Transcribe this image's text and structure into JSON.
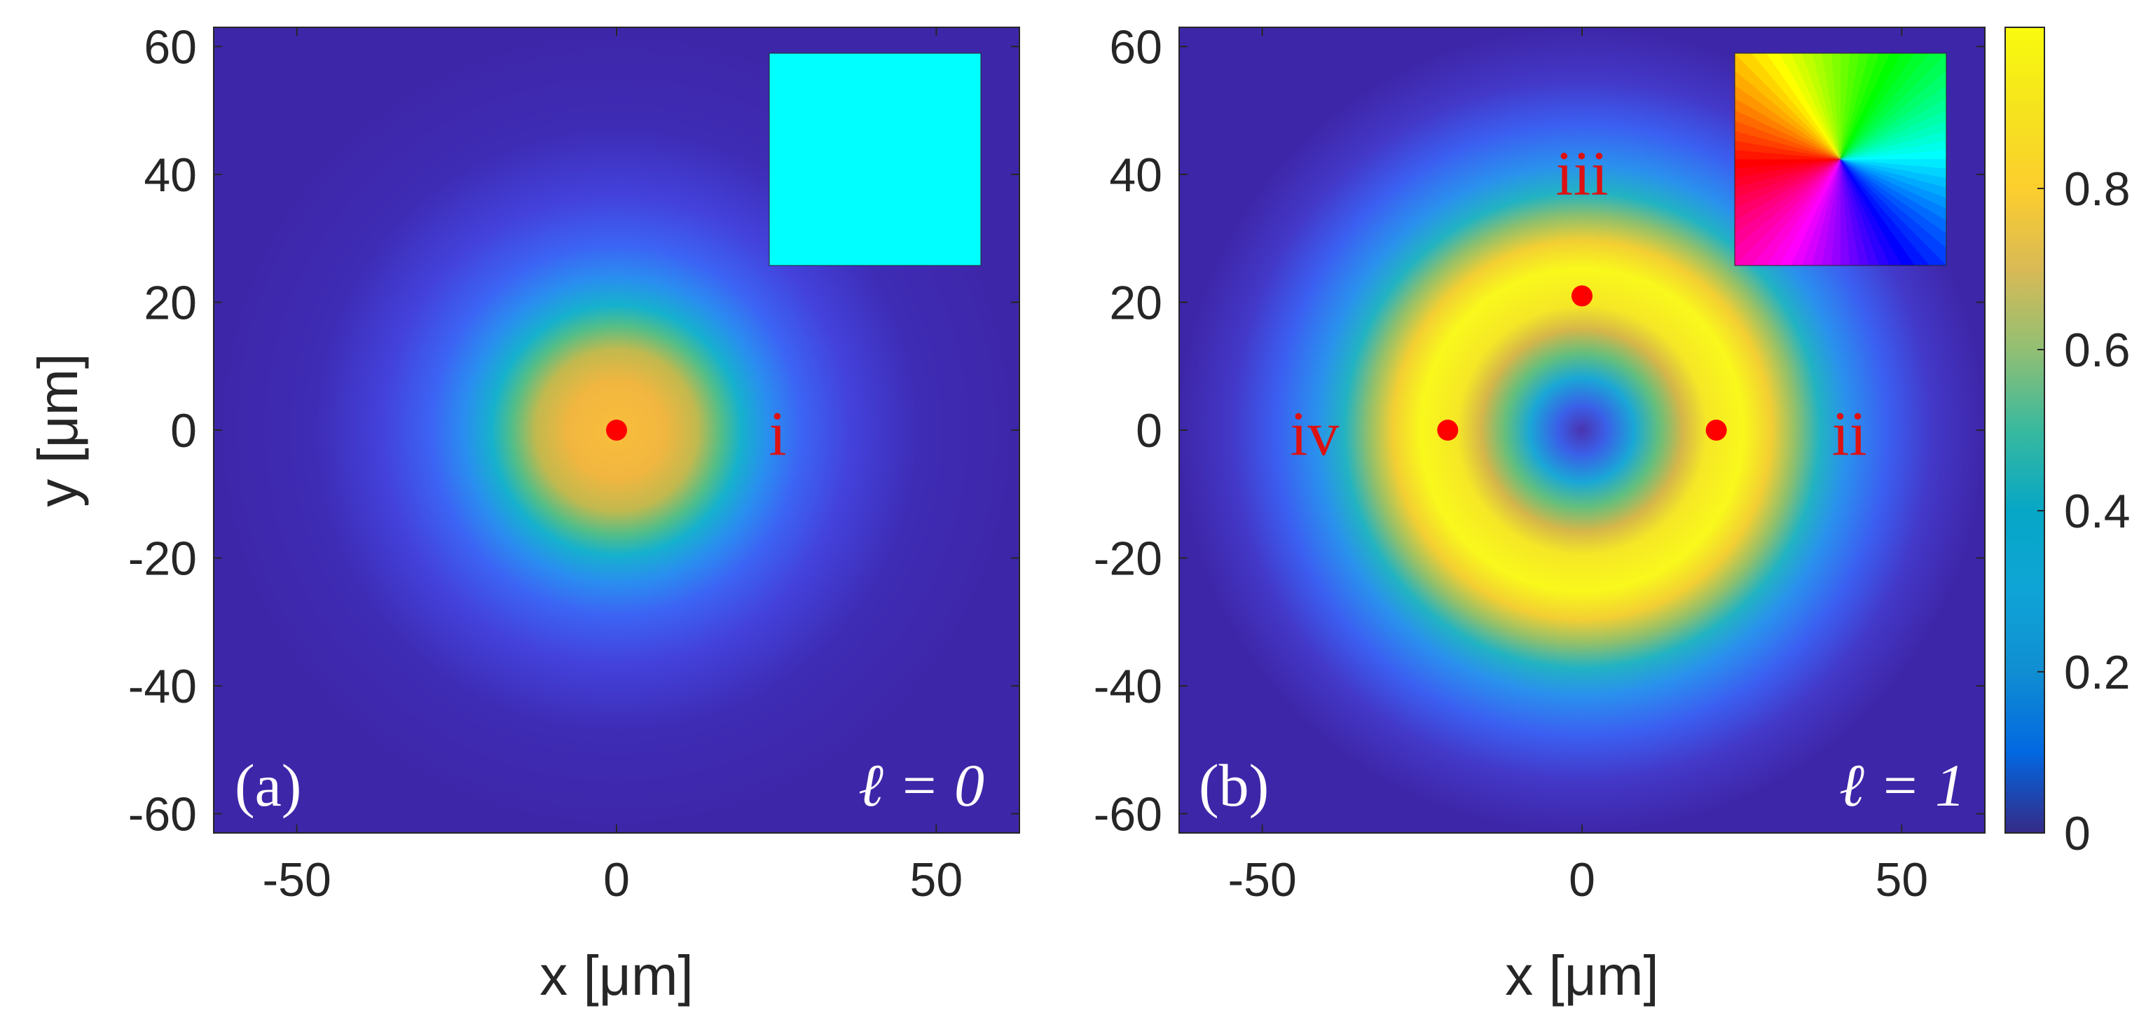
{
  "chart_data": [
    {
      "type": "heatmap",
      "panel_label": "(a)",
      "mode_label": "ℓ = 0",
      "ell": 0,
      "field": "normalized intensity |E|^2",
      "beam": "Gaussian (LG00)",
      "peak_center_um": [
        0,
        0
      ],
      "xlabel": "x [μm]",
      "ylabel": "y [μm]",
      "xlim": [
        -63,
        63
      ],
      "ylim": [
        -63,
        63
      ],
      "xticks": [
        -50,
        0,
        50
      ],
      "yticks": [
        60,
        40,
        20,
        0,
        -20,
        -40,
        -60
      ],
      "xtick_labels": [
        "-50",
        "0",
        "50"
      ],
      "ytick_labels": [
        "60",
        "40",
        "20",
        "0",
        "-20",
        "-40",
        "-60"
      ],
      "inset": {
        "type": "phase",
        "description": "uniform phase",
        "color": "#00ffff"
      },
      "points": [
        {
          "label": "i",
          "x": 0,
          "y": 0
        }
      ]
    },
    {
      "type": "heatmap",
      "panel_label": "(b)",
      "mode_label": "ℓ = 1",
      "ell": 1,
      "field": "normalized intensity |E|^2",
      "beam": "Laguerre-Gaussian donut (LG01)",
      "ring_radius_um": 21,
      "xlabel": "x [μm]",
      "xlim": [
        -63,
        63
      ],
      "ylim": [
        -63,
        63
      ],
      "xticks": [
        -50,
        0,
        50
      ],
      "yticks": [
        60,
        40,
        20,
        0,
        -20,
        -40,
        -60
      ],
      "xtick_labels": [
        "-50",
        "0",
        "50"
      ],
      "ytick_labels": [
        "60",
        "40",
        "20",
        "0",
        "-20",
        "-40",
        "-60"
      ],
      "inset": {
        "type": "phase",
        "description": "azimuthal phase winding (hue wheel)"
      },
      "points": [
        {
          "label": "ii",
          "x": 21,
          "y": 0
        },
        {
          "label": "iii",
          "x": 0,
          "y": 21
        },
        {
          "label": "iv",
          "x": -21,
          "y": 0
        }
      ]
    }
  ],
  "colorbar": {
    "colormap": "parula",
    "range": [
      0,
      1
    ],
    "ticks": [
      0,
      0.2,
      0.4,
      0.6,
      0.8
    ],
    "tick_labels": [
      "0",
      "0.2",
      "0.4",
      "0.6",
      "0.8"
    ]
  },
  "colors": {
    "marker": "#ff0000",
    "point_label": "#dd1111",
    "panel_text": "#ffffff",
    "background": "#3e26a8",
    "inset_uniform": "#00ffff"
  }
}
